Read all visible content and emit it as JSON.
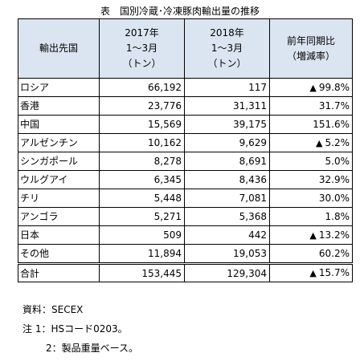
{
  "title": "表　国別冷蔵･冷凍豚肉輸出量の推移",
  "header": {
    "country": "輸出先国",
    "col2017": [
      "2017年",
      "1～3月",
      "（トン）"
    ],
    "col2018": [
      "2018年",
      "1～3月",
      "（トン）"
    ],
    "change": [
      "前年同期比",
      "（増減率）"
    ]
  },
  "rows": [
    {
      "country": "ロシア",
      "v2017": "66,192",
      "v2018": "117",
      "down": true,
      "change": "99.8%"
    },
    {
      "country": "香港",
      "v2017": "23,776",
      "v2018": "31,311",
      "down": false,
      "change": "31.7%"
    },
    {
      "country": "中国",
      "v2017": "15,569",
      "v2018": "39,175",
      "down": false,
      "change": "151.6%"
    },
    {
      "country": "アルゼンチン",
      "v2017": "10,162",
      "v2018": "9,629",
      "down": true,
      "change": "5.2%"
    },
    {
      "country": "シンガポール",
      "v2017": "8,278",
      "v2018": "8,691",
      "down": false,
      "change": "5.0%"
    },
    {
      "country": "ウルグアイ",
      "v2017": "6,345",
      "v2018": "8,436",
      "down": false,
      "change": "32.9%"
    },
    {
      "country": "チリ",
      "v2017": "5,448",
      "v2018": "7,081",
      "down": false,
      "change": "30.0%"
    },
    {
      "country": "アンゴラ",
      "v2017": "5,271",
      "v2018": "5,368",
      "down": false,
      "change": "1.8%"
    },
    {
      "country": "日本",
      "v2017": "509",
      "v2018": "442",
      "down": true,
      "change": "13.2%"
    },
    {
      "country": "その他",
      "v2017": "11,894",
      "v2018": "19,053",
      "down": false,
      "change": "60.2%"
    }
  ],
  "total": {
    "country": "合計",
    "v2017": "153,445",
    "v2018": "129,304",
    "down": true,
    "change": "15.7%"
  },
  "down_symbol": "▲",
  "notes": [
    "資料：SECEX",
    "注 1：HSコード0203。",
    "2：製品重量ベース。"
  ],
  "colors": {
    "header_bg": "#dbe5f1",
    "border": "#000000"
  }
}
